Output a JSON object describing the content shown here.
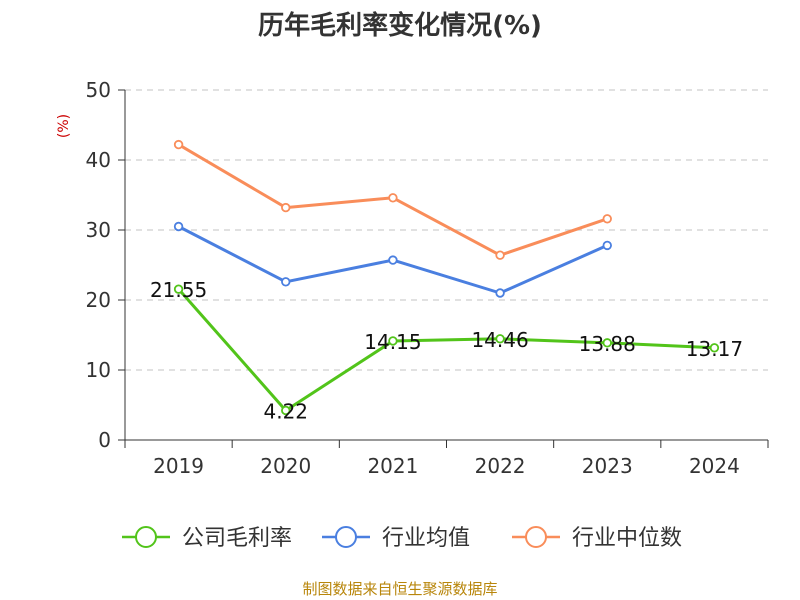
{
  "chart_data": {
    "type": "line",
    "title": "历年毛利率变化情况(%)",
    "ylabel": "(%)",
    "xlabel": "",
    "categories": [
      "2019",
      "2020",
      "2021",
      "2022",
      "2023",
      "2024"
    ],
    "ylim": [
      0,
      50
    ],
    "yticks": [
      0,
      10,
      20,
      30,
      40,
      50
    ],
    "grid": true,
    "legend_position": "bottom",
    "series": [
      {
        "name": "公司毛利率",
        "color": "#52c41a",
        "values": [
          21.55,
          4.22,
          14.15,
          14.46,
          13.88,
          13.17
        ],
        "labels": [
          "21.55",
          "4.22",
          "14.15",
          "14.46",
          "13.88",
          "13.17"
        ]
      },
      {
        "name": "行业均值",
        "color": "#4a7fe0",
        "values": [
          30.5,
          22.6,
          25.7,
          21.0,
          27.8,
          null
        ]
      },
      {
        "name": "行业中位数",
        "color": "#f98d5a",
        "values": [
          42.2,
          33.2,
          34.6,
          26.4,
          31.6,
          null
        ]
      }
    ]
  },
  "footer": {
    "source": "制图数据来自恒生聚源数据库"
  }
}
